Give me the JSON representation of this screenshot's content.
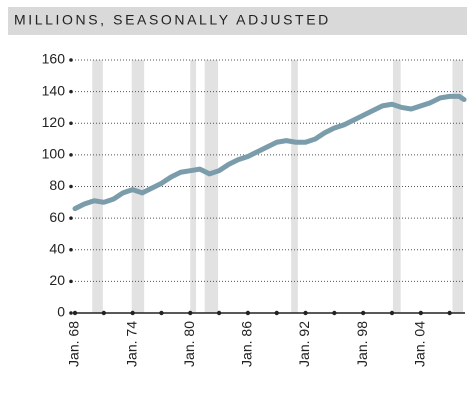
{
  "chart_data": {
    "type": "line",
    "title": "MILLIONS, SEASONALLY ADJUSTED",
    "x": [
      1968,
      1969,
      1970,
      1971,
      1972,
      1973,
      1974,
      1975,
      1976,
      1977,
      1978,
      1979,
      1980,
      1981,
      1982,
      1983,
      1984,
      1985,
      1986,
      1987,
      1988,
      1989,
      1990,
      1991,
      1992,
      1993,
      1994,
      1995,
      1996,
      1997,
      1998,
      1999,
      2000,
      2001,
      2002,
      2003,
      2004,
      2005,
      2006,
      2007,
      2008,
      2008.5
    ],
    "series": [
      {
        "color": "#7b9dab",
        "values": [
          66,
          69,
          71,
          70,
          72,
          76,
          78,
          76,
          79,
          82,
          86,
          89,
          90,
          91,
          88,
          90,
          94,
          97,
          99,
          102,
          105,
          108,
          109,
          108,
          108,
          110,
          114,
          117,
          119,
          122,
          125,
          128,
          131,
          132,
          130,
          129,
          131,
          133,
          136,
          137,
          137,
          135
        ]
      }
    ],
    "recessions": [
      [
        1969.8,
        1970.9
      ],
      [
        1973.9,
        1975.2
      ],
      [
        1980.0,
        1980.6
      ],
      [
        1981.5,
        1982.9
      ],
      [
        1990.5,
        1991.2
      ],
      [
        2001.1,
        2001.9
      ],
      [
        2007.3,
        2008.4
      ]
    ],
    "recession_color": "#e2e2e2",
    "xlim": [
      1968,
      2008.6
    ],
    "xticks": [
      {
        "value": 1968,
        "label": "Jan. 68"
      },
      {
        "value": 1971,
        "label": null
      },
      {
        "value": 1974,
        "label": "Jan. 74"
      },
      {
        "value": 1977,
        "label": null
      },
      {
        "value": 1980,
        "label": "Jan. 80"
      },
      {
        "value": 1983,
        "label": null
      },
      {
        "value": 1986,
        "label": "Jan. 86"
      },
      {
        "value": 1989,
        "label": null
      },
      {
        "value": 1992,
        "label": "Jan. 92"
      },
      {
        "value": 1995,
        "label": null
      },
      {
        "value": 1998,
        "label": "Jan. 98"
      },
      {
        "value": 2001,
        "label": null
      },
      {
        "value": 2004,
        "label": "Jan. 04"
      },
      {
        "value": 2007,
        "label": null
      }
    ],
    "ylim": [
      0,
      160
    ],
    "yticks": [
      0,
      20,
      40,
      60,
      80,
      100,
      120,
      140,
      160
    ],
    "grid": true
  }
}
